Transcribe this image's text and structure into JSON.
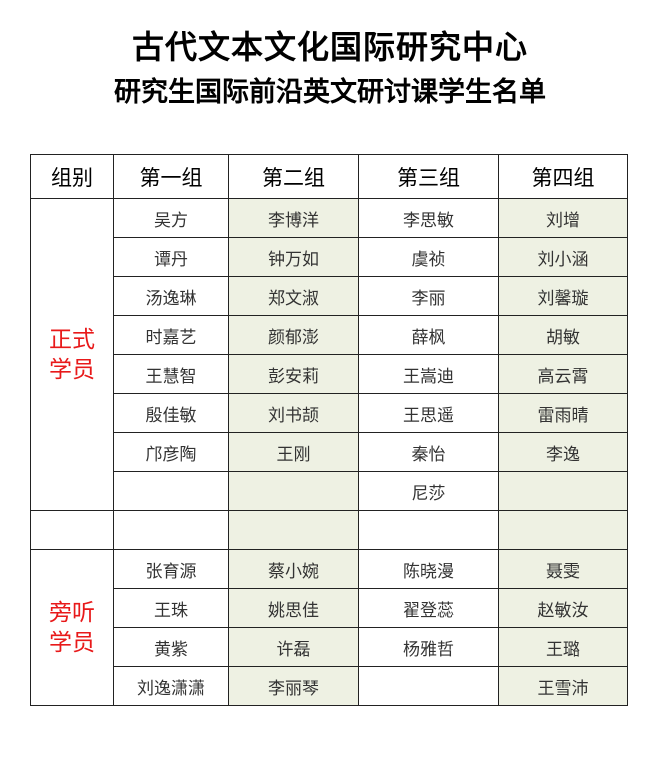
{
  "title": "古代文本文化国际研究中心",
  "subtitle": "研究生国际前沿英文研讨课学生名单",
  "headers": [
    "组别",
    "第一组",
    "第二组",
    "第三组",
    "第四组"
  ],
  "formal": {
    "label1": "正式",
    "label2": "学员",
    "rows": [
      [
        "吴方",
        "李博洋",
        "李思敏",
        "刘增"
      ],
      [
        "谭丹",
        "钟万如",
        "虞祯",
        "刘小涵"
      ],
      [
        "汤逸琳",
        "郑文淑",
        "李丽",
        "刘馨璇"
      ],
      [
        "时嘉艺",
        "颜郁澎",
        "薛枫",
        "胡敏"
      ],
      [
        "王慧智",
        "彭安莉",
        "王嵩迪",
        "高云霄"
      ],
      [
        "殷佳敏",
        "刘书颉",
        "王思遥",
        "雷雨晴"
      ],
      [
        "邝彦陶",
        "王刚",
        "秦怡",
        "李逸"
      ],
      [
        "",
        "",
        "尼莎",
        ""
      ]
    ]
  },
  "auditor": {
    "label1": "旁听",
    "label2": "学员",
    "rows": [
      [
        "张育源",
        "蔡小婉",
        "陈晓漫",
        "聂雯"
      ],
      [
        "王珠",
        "姚思佳",
        "翟登蕊",
        "赵敏汝"
      ],
      [
        "黄紫",
        "许磊",
        "杨雅哲",
        "王璐"
      ],
      [
        "刘逸潇潇",
        "李丽琴",
        "",
        "王雪沛"
      ]
    ]
  }
}
